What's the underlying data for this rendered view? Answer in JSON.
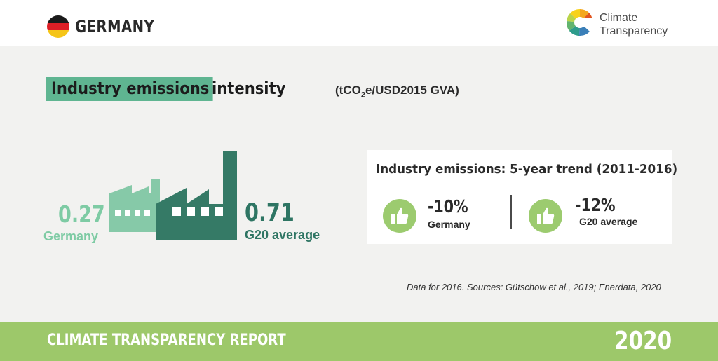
{
  "header": {
    "country": "GERMANY",
    "logo_line1": "Climate",
    "logo_line2": "Transparency",
    "flag_colors": [
      "#1a1a1a",
      "#dd1f26",
      "#f5c518"
    ]
  },
  "heading": {
    "highlight": "Industry emissions",
    "rest": "intensity",
    "unit_prefix": "(tCO",
    "unit_sub": "2",
    "unit_suffix": "e/USD2015 GVA)"
  },
  "comparison": {
    "germany_value": "0.27",
    "germany_label": "Germany",
    "g20_value": "0.71",
    "g20_label": "G20 average",
    "germany_color": "#7ecba4",
    "g20_color": "#2e7563"
  },
  "trend": {
    "title": "Industry emissions: 5-year trend (2011-2016)",
    "items": [
      {
        "value": "-10%",
        "label": "Germany",
        "icon": "thumbs-up-icon"
      },
      {
        "value": "-12%",
        "label": "G20 average",
        "icon": "thumbs-up-icon"
      }
    ],
    "icon_color": "#9ccb6f"
  },
  "source": "Data for 2016. Sources: Gütschow et al., 2019; Enerdata, 2020",
  "footer": {
    "title": "CLIMATE TRANSPARENCY REPORT",
    "year": "2020",
    "color": "#9dc86a"
  }
}
